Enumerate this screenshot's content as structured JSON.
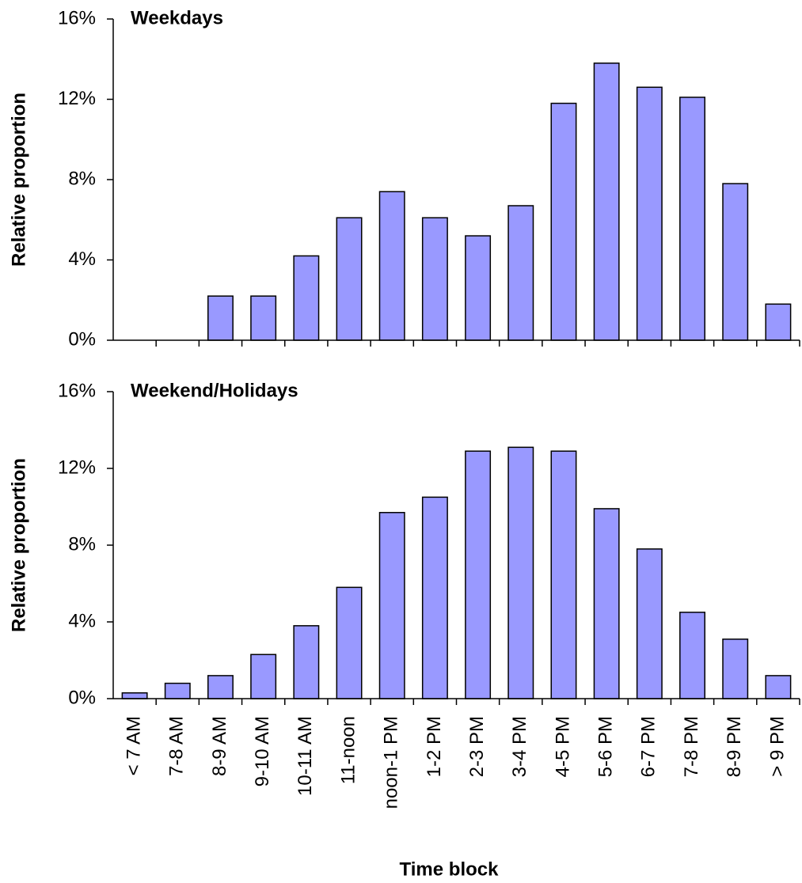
{
  "chart_data": [
    {
      "type": "bar",
      "title": "Weekdays",
      "y_label": "Relative proportion",
      "color": "#9999ff",
      "values": [
        0,
        0,
        2.2,
        2.2,
        4.2,
        6.1,
        7.4,
        6.1,
        5.2,
        6.7,
        11.8,
        13.8,
        12.6,
        12.1,
        7.8,
        1.8
      ],
      "ylim": [
        0,
        16
      ],
      "yticks": [
        {
          "value": 0,
          "label": "0%"
        },
        {
          "value": 4,
          "label": "4%"
        },
        {
          "value": 8,
          "label": "8%"
        },
        {
          "value": 12,
          "label": "12%"
        },
        {
          "value": 16,
          "label": "16%"
        }
      ]
    },
    {
      "type": "bar",
      "title": "Weekend/Holidays",
      "y_label": "Relative proportion",
      "x_label": "Time block",
      "color": "#9999ff",
      "categories": [
        "< 7 AM",
        "7-8 AM",
        "8-9 AM",
        "9-10 AM",
        "10-11 AM",
        "11-noon",
        "noon-1 PM",
        "1-2 PM",
        "2-3 PM",
        "3-4 PM",
        "4-5 PM",
        "5-6 PM",
        "6-7 PM",
        "7-8 PM",
        "8-9 PM",
        "> 9 PM"
      ],
      "values": [
        0.3,
        0.8,
        1.2,
        2.3,
        3.8,
        5.8,
        9.7,
        10.5,
        12.9,
        13.1,
        12.9,
        9.9,
        7.8,
        4.5,
        3.1,
        1.2
      ],
      "ylim": [
        0,
        16
      ],
      "yticks": [
        {
          "value": 0,
          "label": "0%"
        },
        {
          "value": 4,
          "label": "4%"
        },
        {
          "value": 8,
          "label": "8%"
        },
        {
          "value": 12,
          "label": "12%"
        },
        {
          "value": 16,
          "label": "16%"
        }
      ]
    }
  ]
}
